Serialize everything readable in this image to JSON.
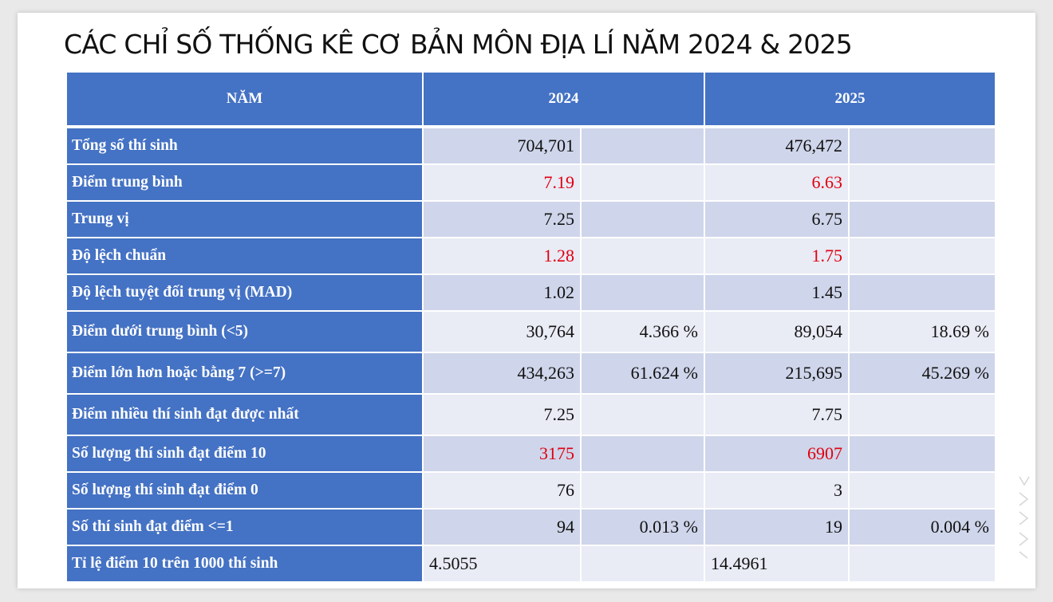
{
  "title": "CÁC CHỈ SỐ THỐNG KÊ CƠ BẢN MÔN ĐỊA LÍ NĂM 2024 & 2025",
  "header": {
    "col_label": "NĂM",
    "year1": "2024",
    "year2": "2025"
  },
  "rows": [
    {
      "label": "Tổng số thí sinh",
      "y1": "704,701",
      "y1p": "",
      "y2": "476,472",
      "y2p": ""
    },
    {
      "label": "Điểm trung bình",
      "y1": "7.19",
      "y1p": "",
      "y2": "6.63",
      "y2p": ""
    },
    {
      "label": "Trung vị",
      "y1": "7.25",
      "y1p": "",
      "y2": "6.75",
      "y2p": ""
    },
    {
      "label": "Độ lệch chuẩn",
      "y1": "1.28",
      "y1p": "",
      "y2": "1.75",
      "y2p": ""
    },
    {
      "label": "Độ lệch tuyệt đối trung vị (MAD)",
      "y1": "1.02",
      "y1p": "",
      "y2": "1.45",
      "y2p": ""
    },
    {
      "label": "Điểm dưới trung bình (<5)",
      "y1": "30,764",
      "y1p": "4.366 %",
      "y2": "89,054",
      "y2p": "18.69 %"
    },
    {
      "label": "Điểm lớn hơn hoặc bằng 7 (>=7)",
      "y1": "434,263",
      "y1p": "61.624 %",
      "y2": "215,695",
      "y2p": "45.269 %"
    },
    {
      "label": "Điểm nhiều thí sinh đạt được nhất",
      "y1": "7.25",
      "y1p": "",
      "y2": "7.75",
      "y2p": ""
    },
    {
      "label": "Số lượng thí sinh đạt điểm 10",
      "y1": "3175",
      "y1p": "",
      "y2": "6907",
      "y2p": ""
    },
    {
      "label": "Số lượng thí sinh đạt điểm 0",
      "y1": "76",
      "y1p": "",
      "y2": "3",
      "y2p": ""
    },
    {
      "label": "Số thí sinh đạt điểm <=1",
      "y1": "94",
      "y1p": "0.013 %",
      "y2": "19",
      "y2p": "0.004 %"
    },
    {
      "label": "Tỉ lệ điểm 10 trên 1000 thí sinh",
      "y1": "4.5055",
      "y1p": "",
      "y2": "14.4961",
      "y2p": ""
    }
  ],
  "colors": {
    "header_blue": "#4472c4",
    "row_dark": "#cfd5ea",
    "row_light": "#e9ebf5",
    "highlight_red": "#e0000f"
  }
}
